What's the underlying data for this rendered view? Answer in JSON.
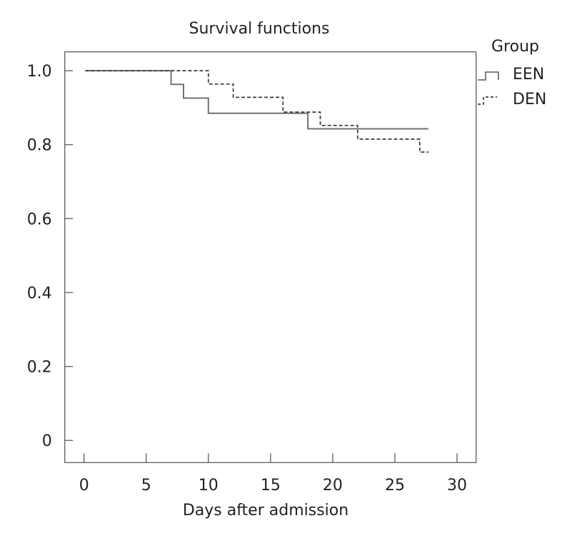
{
  "title": "Survival functions",
  "xlabel": "Days after admission",
  "legend": {
    "title": "Group",
    "entries": [
      {
        "label": "EEN",
        "style": "solid"
      },
      {
        "label": "DEN",
        "style": "dashed"
      }
    ]
  },
  "colors": {
    "text": "#231f20",
    "frame": "#5b5c5e",
    "een_line": "#707174",
    "den_line": "#39393b",
    "background": "#ffffff"
  },
  "chart_data": {
    "type": "line",
    "subtype": "kaplan-meier-step",
    "title": "Survival functions",
    "xlabel": "Days after admission",
    "ylabel": "",
    "grid": false,
    "legend_position": "outside-top-right",
    "legend_title": "Group",
    "xlim": [
      -1.55,
      31.53
    ],
    "ylim": [
      -0.06,
      1.051
    ],
    "x_ticks": [
      0,
      5,
      10,
      15,
      20,
      25,
      30
    ],
    "y_ticks": [
      0,
      0.2,
      0.4,
      0.6,
      0.8,
      1.0
    ],
    "y_tick_labels": [
      "0",
      "0.2",
      "0.4",
      "0.6",
      "0.8",
      "1.0"
    ],
    "x_tick_labels": [
      "0",
      "5",
      "10",
      "15",
      "20",
      "25",
      "30"
    ],
    "series": [
      {
        "name": "EEN",
        "style": "solid",
        "color": "#707174",
        "points": [
          [
            0.1,
            1.0
          ],
          [
            7,
            0.963
          ],
          [
            8,
            0.926
          ],
          [
            10,
            0.885
          ],
          [
            18,
            0.843
          ],
          [
            27.7,
            0.843
          ]
        ]
      },
      {
        "name": "DEN",
        "style": "dashed",
        "color": "#39393b",
        "points": [
          [
            0.1,
            1.0
          ],
          [
            10,
            0.964
          ],
          [
            12,
            0.928
          ],
          [
            16,
            0.888
          ],
          [
            19,
            0.852
          ],
          [
            22,
            0.815
          ],
          [
            27,
            0.78
          ],
          [
            27.7,
            0.78
          ]
        ]
      }
    ]
  }
}
